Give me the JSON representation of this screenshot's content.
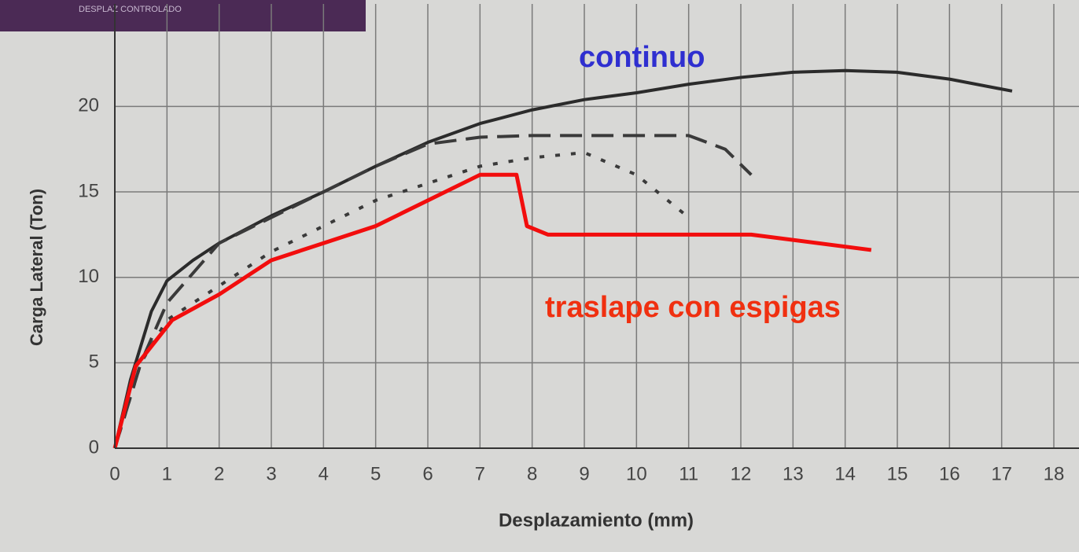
{
  "inset_text": "DESPLAZ CONTROLADO",
  "chart_data": {
    "type": "line",
    "xlabel": "Desplazamiento (mm)",
    "ylabel": "Carga Lateral (Ton)",
    "xlim": [
      0,
      18
    ],
    "ylim": [
      0,
      26
    ],
    "xticks": [
      0,
      1,
      2,
      3,
      4,
      5,
      6,
      7,
      8,
      9,
      10,
      11,
      12,
      13,
      14,
      15,
      16,
      17,
      18
    ],
    "yticks": [
      0,
      5,
      10,
      15,
      20
    ],
    "grid": true,
    "series": [
      {
        "name": "continuo",
        "color": "#2b2b2b",
        "dash": "solid",
        "label_color": "#2f2fd0",
        "x": [
          0,
          0.3,
          0.7,
          1,
          1.5,
          2,
          3,
          4,
          5,
          6,
          7,
          8,
          9,
          10,
          11,
          12,
          13,
          14,
          15,
          16,
          17.2
        ],
        "values": [
          0,
          4,
          8,
          9.8,
          11,
          12,
          13.6,
          15,
          16.5,
          17.9,
          19,
          19.8,
          20.4,
          20.8,
          21.3,
          21.7,
          22,
          22.1,
          22,
          21.6,
          20.9
        ]
      },
      {
        "color": "#3a3a3a",
        "dash": "dashed",
        "x": [
          0,
          0.5,
          1,
          2,
          3,
          4,
          5,
          6,
          7,
          8,
          9,
          10,
          11,
          11.7,
          12.2
        ],
        "values": [
          0,
          5,
          8.5,
          12,
          13.5,
          15,
          16.5,
          17.8,
          18.2,
          18.3,
          18.3,
          18.3,
          18.3,
          17.5,
          16
        ]
      },
      {
        "color": "#3a3a3a",
        "dash": "dotted",
        "x": [
          0,
          0.5,
          1,
          2,
          3,
          4,
          5,
          6,
          7,
          8,
          9,
          10,
          11
        ],
        "values": [
          0,
          5,
          7.5,
          9.5,
          11.5,
          13,
          14.5,
          15.5,
          16.5,
          17,
          17.3,
          16,
          13.5
        ]
      },
      {
        "name": "traslape con espigas",
        "color": "#f20d0d",
        "dash": "solid",
        "label_color": "#f03010",
        "x": [
          0,
          0.4,
          1.1,
          2,
          3,
          4,
          5,
          7,
          7.7,
          7.9,
          8.3,
          12.2,
          14.5
        ],
        "values": [
          0,
          4.8,
          7.5,
          9,
          11,
          12,
          13,
          16,
          16,
          13,
          12.5,
          12.5,
          11.6
        ]
      }
    ]
  }
}
